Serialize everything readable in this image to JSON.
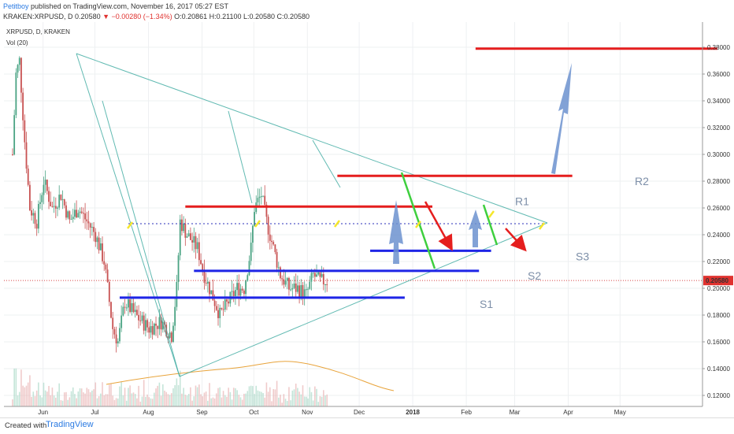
{
  "header": {
    "author": "Petitboy",
    "published": "published on TradingView.com, November 16, 2017 05:27 EST",
    "symbol": "KRAKEN:XRPUSD, D",
    "price": "0.20580",
    "change": "▼ −0.00280 (−1.34%)",
    "ohlc": "O:0.20861 H:0.21100 L:0.20580 C:0.20580"
  },
  "chart_data": {
    "type": "candlestick",
    "instrument": "XRPUSD, D, KRAKEN",
    "indicator": "Vol (20)",
    "last_price_label": "0.20580",
    "last_price": 0.2058,
    "y_range": [
      0.11,
      0.39
    ],
    "y_ticks": [
      "0.38000",
      "0.36000",
      "0.34000",
      "0.32000",
      "0.30000",
      "0.28000",
      "0.26000",
      "0.24000",
      "0.22000",
      "0.20000",
      "0.18000",
      "0.16000",
      "0.14000",
      "0.12000"
    ],
    "x_ticks": [
      "Jun",
      "Jul",
      "Aug",
      "Sep",
      "Oct",
      "Nov",
      "Dec",
      "2018",
      "Feb",
      "Mar",
      "Apr",
      "May"
    ],
    "price_path": [
      {
        "date": "2017-05-18",
        "price": 0.3
      },
      {
        "date": "2017-05-20",
        "price": 0.36
      },
      {
        "date": "2017-05-22",
        "price": 0.37
      },
      {
        "date": "2017-05-25",
        "price": 0.31
      },
      {
        "date": "2017-05-28",
        "price": 0.26
      },
      {
        "date": "2017-06-01",
        "price": 0.25
      },
      {
        "date": "2017-06-05",
        "price": 0.28
      },
      {
        "date": "2017-06-10",
        "price": 0.26
      },
      {
        "date": "2017-06-15",
        "price": 0.27
      },
      {
        "date": "2017-06-20",
        "price": 0.25
      },
      {
        "date": "2017-06-25",
        "price": 0.26
      },
      {
        "date": "2017-06-30",
        "price": 0.25
      },
      {
        "date": "2017-07-05",
        "price": 0.24
      },
      {
        "date": "2017-07-10",
        "price": 0.22
      },
      {
        "date": "2017-07-15",
        "price": 0.17
      },
      {
        "date": "2017-07-18",
        "price": 0.16
      },
      {
        "date": "2017-07-22",
        "price": 0.19
      },
      {
        "date": "2017-07-28",
        "price": 0.18
      },
      {
        "date": "2017-08-05",
        "price": 0.17
      },
      {
        "date": "2017-08-12",
        "price": 0.175
      },
      {
        "date": "2017-08-18",
        "price": 0.165
      },
      {
        "date": "2017-08-21",
        "price": 0.2
      },
      {
        "date": "2017-08-23",
        "price": 0.25
      },
      {
        "date": "2017-08-27",
        "price": 0.24
      },
      {
        "date": "2017-09-02",
        "price": 0.23
      },
      {
        "date": "2017-09-06",
        "price": 0.21
      },
      {
        "date": "2017-09-12",
        "price": 0.19
      },
      {
        "date": "2017-09-15",
        "price": 0.18
      },
      {
        "date": "2017-09-20",
        "price": 0.19
      },
      {
        "date": "2017-09-25",
        "price": 0.2
      },
      {
        "date": "2017-09-29",
        "price": 0.2
      },
      {
        "date": "2017-10-03",
        "price": 0.23
      },
      {
        "date": "2017-10-05",
        "price": 0.26
      },
      {
        "date": "2017-10-09",
        "price": 0.27
      },
      {
        "date": "2017-10-12",
        "price": 0.25
      },
      {
        "date": "2017-10-16",
        "price": 0.23
      },
      {
        "date": "2017-10-20",
        "price": 0.21
      },
      {
        "date": "2017-10-25",
        "price": 0.2
      },
      {
        "date": "2017-10-30",
        "price": 0.2
      },
      {
        "date": "2017-11-04",
        "price": 0.195
      },
      {
        "date": "2017-11-08",
        "price": 0.21
      },
      {
        "date": "2017-11-12",
        "price": 0.205
      },
      {
        "date": "2017-11-16",
        "price": 0.2058
      }
    ],
    "levels": [
      {
        "label": "R2",
        "price": 0.284,
        "from": "2017-11-22",
        "to": "2018-04-07",
        "color": "#e51e1e"
      },
      {
        "label": "R1",
        "price": 0.261,
        "from": "2017-08-26",
        "to": "2018-01-16",
        "color": "#e51e1e"
      },
      {
        "label": "S3",
        "price": 0.228,
        "from": "2017-12-11",
        "to": "2018-02-19",
        "color": "#1e25e6"
      },
      {
        "label": "S2",
        "price": 0.213,
        "from": "2017-08-31",
        "to": "2018-02-12",
        "color": "#1e25e6"
      },
      {
        "label": "S1",
        "price": 0.193,
        "from": "2017-07-19",
        "to": "2017-12-31",
        "color": "#1e25e6"
      },
      {
        "label": "",
        "price": 0.379,
        "from": "2018-02-10",
        "to": "2018-06-30",
        "color": "#e51e1e"
      }
    ]
  },
  "footer": {
    "created": "Created with",
    "brand": "TradingView"
  }
}
